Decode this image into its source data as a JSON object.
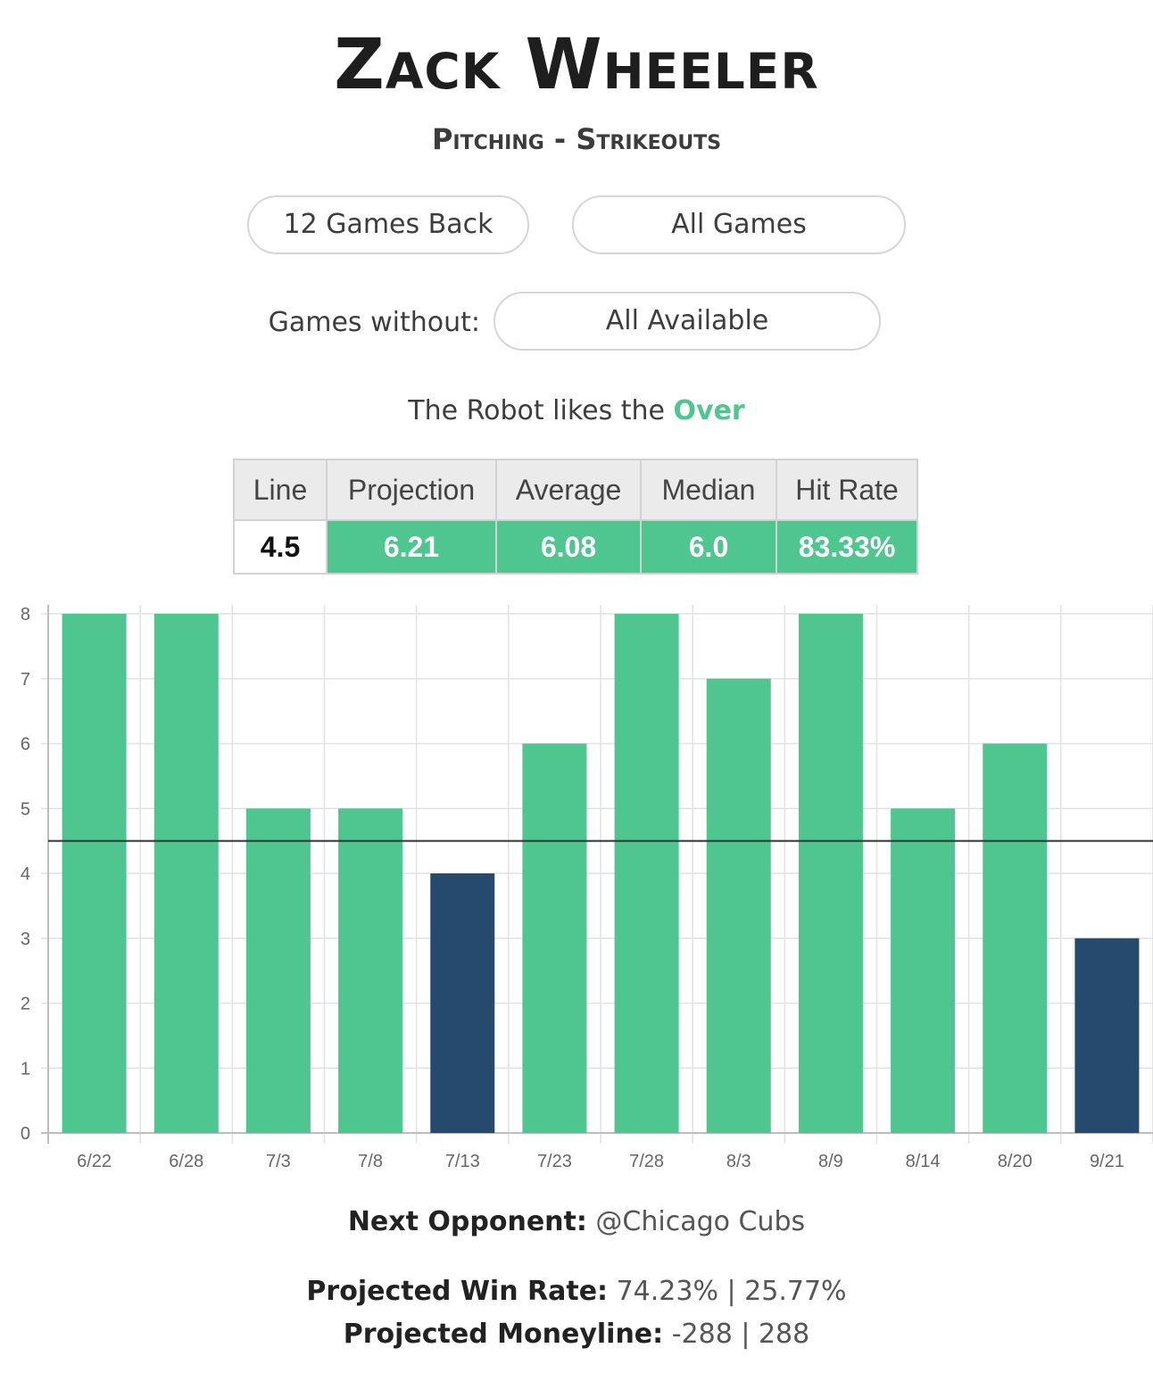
{
  "player": {
    "name": "Zack Wheeler",
    "category": "Pitching - Strikeouts"
  },
  "filters": {
    "range_label": "12 Games Back",
    "games_label": "All Games",
    "without_label": "Games without:",
    "without_value": "All Available"
  },
  "recommendation": {
    "prefix": "The Robot likes the",
    "pick": "Over",
    "pick_color": "#4fc58f"
  },
  "stats": {
    "headers": [
      "Line",
      "Projection",
      "Average",
      "Median",
      "Hit Rate"
    ],
    "values": [
      "4.5",
      "6.21",
      "6.08",
      "6.0",
      "83.33%"
    ]
  },
  "chart_data": {
    "type": "bar",
    "categories": [
      "6/22",
      "6/28",
      "7/3",
      "7/8",
      "7/13",
      "7/23",
      "7/28",
      "8/3",
      "8/9",
      "8/14",
      "8/20",
      "9/21"
    ],
    "values": [
      8,
      8,
      5,
      5,
      4,
      6,
      8,
      7,
      8,
      5,
      6,
      3
    ],
    "ylim": [
      0,
      8
    ],
    "yticks": [
      0,
      1,
      2,
      3,
      4,
      5,
      6,
      7,
      8
    ],
    "reference_line": 4.5,
    "over_color": "#4fc58f",
    "under_color": "#264a6e",
    "grid": true
  },
  "next_opponent": {
    "label": "Next Opponent:",
    "value": "@Chicago Cubs"
  },
  "projections": {
    "win_rate_label": "Projected Win Rate:",
    "win_rate_value": "74.23% | 25.77%",
    "moneyline_label": "Projected Moneyline:",
    "moneyline_value": "-288 | 288"
  }
}
